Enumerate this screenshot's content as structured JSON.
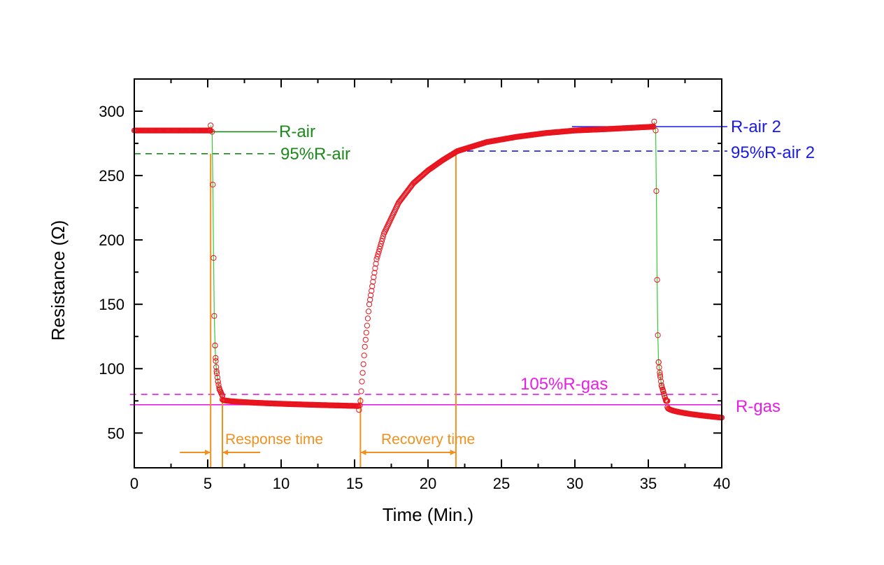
{
  "chart_data": {
    "type": "scatter",
    "title": "",
    "xlabel": "Time (Min.)",
    "ylabel": "Resistance (Ω)",
    "xlim": [
      0,
      40
    ],
    "ylim": [
      23,
      325
    ],
    "xticks": [
      0,
      5,
      10,
      15,
      20,
      25,
      30,
      35,
      40
    ],
    "xtick_labels": [
      "0",
      "5",
      "10",
      "15",
      "20",
      "25",
      "30",
      "35",
      "40"
    ],
    "yticks": [
      50,
      100,
      150,
      200,
      250,
      300
    ],
    "ytick_labels": [
      "50",
      "100",
      "150",
      "200",
      "250",
      "300"
    ],
    "grid": false,
    "series": [
      {
        "name": "Resistance",
        "marker": "open-circle",
        "color": "#e8141e",
        "segments": [
          {
            "phase": "air baseline",
            "t_start": 0,
            "t_end": 5.2,
            "r_start": 285,
            "r_end": 285
          },
          {
            "phase": "gas exposure drop",
            "t_start": 5.2,
            "t_end": 6.0,
            "points": [
              [
                5.2,
                289
              ],
              [
                5.3,
                284
              ],
              [
                5.35,
                243
              ],
              [
                5.4,
                186
              ],
              [
                5.45,
                141
              ],
              [
                5.5,
                118
              ],
              [
                5.55,
                106
              ],
              [
                5.6,
                98
              ],
              [
                5.7,
                90
              ],
              [
                5.8,
                84
              ],
              [
                6.0,
                79
              ]
            ]
          },
          {
            "phase": "gas plateau",
            "t_start": 6.0,
            "t_end": 15.3,
            "r_start": 76,
            "r_end": 71
          },
          {
            "phase": "recovery",
            "t_start": 15.3,
            "t_end": 35.4,
            "points": [
              [
                15.3,
                68
              ],
              [
                15.4,
                75
              ],
              [
                15.5,
                90
              ],
              [
                15.7,
                117
              ],
              [
                16.0,
                150
              ],
              [
                16.5,
                185
              ],
              [
                17.0,
                205
              ],
              [
                18.0,
                229
              ],
              [
                19.0,
                244
              ],
              [
                20.0,
                254
              ],
              [
                21.0,
                262
              ],
              [
                22.0,
                269
              ],
              [
                24.0,
                276
              ],
              [
                26.0,
                280
              ],
              [
                28.0,
                283
              ],
              [
                30.0,
                285
              ],
              [
                32.0,
                286
              ],
              [
                35.4,
                288
              ]
            ]
          },
          {
            "phase": "second gas drop",
            "t_start": 35.4,
            "t_end": 36.3,
            "points": [
              [
                35.4,
                292
              ],
              [
                35.5,
                285
              ],
              [
                35.55,
                238
              ],
              [
                35.6,
                169
              ],
              [
                35.65,
                126
              ],
              [
                35.7,
                105
              ],
              [
                35.8,
                95
              ],
              [
                35.9,
                87
              ],
              [
                36.0,
                83
              ],
              [
                36.2,
                75
              ]
            ]
          },
          {
            "phase": "second gas plateau",
            "t_start": 36.3,
            "t_end": 40,
            "r_start": 70,
            "r_end": 62
          }
        ]
      }
    ],
    "reference_lines": [
      {
        "label": "R-air",
        "value": 284,
        "style": "solid",
        "color": "#1a8a1a",
        "x_start": 5.3,
        "x_end": 9.6
      },
      {
        "label": "95%R-air",
        "value": 267,
        "style": "dashed",
        "color": "#1a8a1a",
        "x_start": 0,
        "x_end": 9.6
      },
      {
        "label": "R-air 2",
        "value": 288,
        "style": "solid",
        "color": "#1a1ae6",
        "x_start": 29.8,
        "x_end": 40
      },
      {
        "label": "95%R-air 2",
        "value": 269,
        "style": "dashed",
        "color": "#1a1ae6",
        "x_start": 21.9,
        "x_end": 40
      },
      {
        "label": "105%R-gas",
        "value": 80,
        "style": "dashed",
        "color": "#e61ee6",
        "x_start": -0.3,
        "x_end": 40
      },
      {
        "label": "R-gas",
        "value": 72,
        "style": "solid",
        "color": "#e61ee6",
        "x_start": -0.3,
        "x_end": 40
      }
    ],
    "time_markers": [
      {
        "x": 5.2,
        "color": "#f0901e"
      },
      {
        "x": 6.0,
        "color": "#f0901e"
      },
      {
        "x": 15.4,
        "color": "#f0901e"
      },
      {
        "x": 21.9,
        "color": "#f0901e"
      }
    ],
    "annotations": [
      {
        "text": "Response time",
        "color": "#f0901e",
        "x_from": 5.2,
        "x_to": 6.0,
        "arrows": "inward"
      },
      {
        "text": "Recovery time",
        "color": "#f0901e",
        "x_from": 15.4,
        "x_to": 21.9,
        "arrows": "double"
      }
    ],
    "connector_line_color": "#33cc33"
  }
}
